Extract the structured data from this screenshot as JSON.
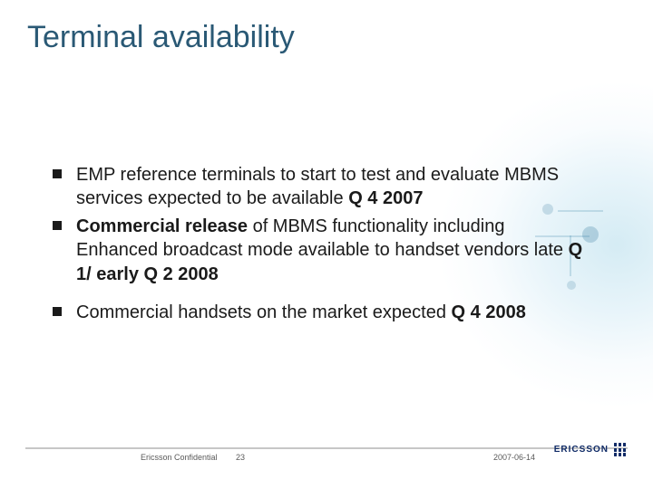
{
  "colors": {
    "title": "#2a5975",
    "body_text": "#1a1a1a",
    "bullet": "#1a1a1a",
    "footer_rule": "#c7c7c7",
    "footer_text": "#5a5a5a",
    "brand_blue": "#0f2a66"
  },
  "title": "Terminal availability",
  "bullets": [
    {
      "gap_before": false,
      "runs": [
        {
          "t": "EMP reference terminals to start to test and evaluate MBMS services expected to be available ",
          "b": false
        },
        {
          "t": "Q 4 2007",
          "b": true
        }
      ]
    },
    {
      "gap_before": false,
      "runs": [
        {
          "t": "Commercial release",
          "b": true
        },
        {
          "t": " of MBMS functionality including Enhanced broadcast mode available to handset vendors late ",
          "b": false
        },
        {
          "t": "Q 1/ early Q 2 2008",
          "b": true
        }
      ]
    },
    {
      "gap_before": true,
      "runs": [
        {
          "t": "Commercial handsets on the market expected ",
          "b": false
        },
        {
          "t": "Q 4 2008",
          "b": true
        }
      ]
    }
  ],
  "footer": {
    "confidential": "Ericsson Confidential",
    "page": "23",
    "date": "2007-06-14"
  },
  "brand": {
    "name": "ERICSSON"
  }
}
